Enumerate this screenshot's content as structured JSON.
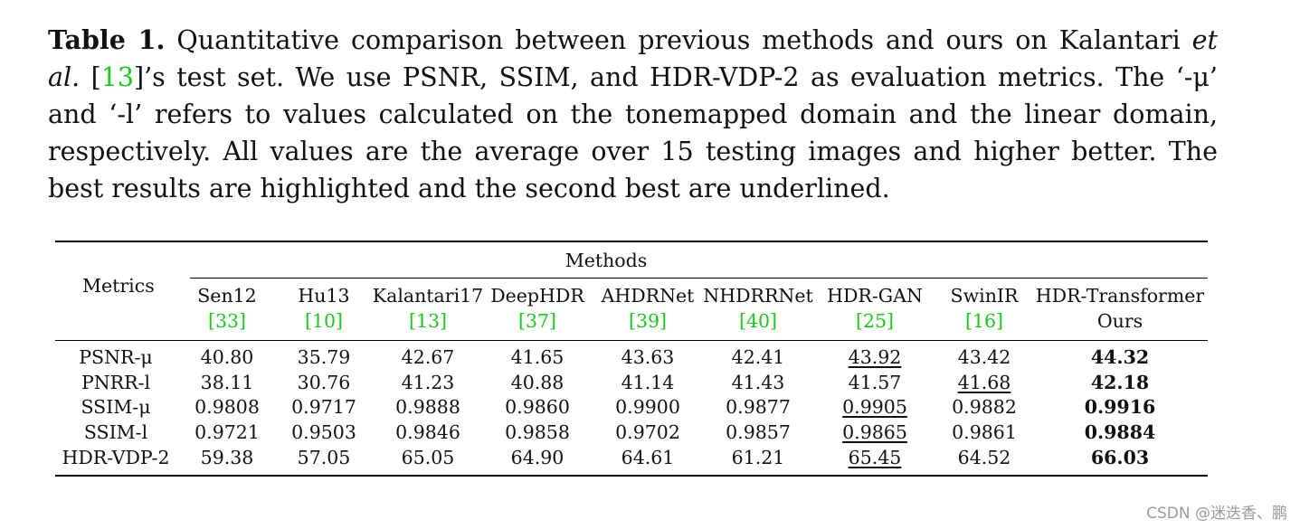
{
  "caption": {
    "label": "Table 1.",
    "text_a": " Quantitative comparison between previous methods and ours on Kalantari ",
    "et_al": "et al.",
    "cite_open": " [",
    "cite_num": "13",
    "text_b": "]’s test set. We use PSNR, SSIM, and HDR-VDP-2 as evaluation metrics. The ‘-μ’ and ‘-l’ refers to values calculated on the tonemapped domain and the linear domain, respectively. All values are the average over 15 testing images and higher better. The best results are highlighted and the second best are underlined."
  },
  "table": {
    "metrics_header": "Metrics",
    "methods_header": "Methods",
    "methods": [
      {
        "name": "Sen12",
        "cite": "[33]"
      },
      {
        "name": "Hu13",
        "cite": "[10]"
      },
      {
        "name": "Kalantari17",
        "cite": "[13]"
      },
      {
        "name": "DeepHDR",
        "cite": "[37]"
      },
      {
        "name": "AHDRNet",
        "cite": "[39]"
      },
      {
        "name": "NHDRRNet",
        "cite": "[40]"
      },
      {
        "name": "HDR-GAN",
        "cite": "[25]"
      },
      {
        "name": "SwinIR",
        "cite": "[16]"
      },
      {
        "name": "HDR-Transformer",
        "cite": "Ours"
      }
    ],
    "rows": [
      {
        "metric": "PSNR-μ",
        "values": [
          "40.80",
          "35.79",
          "42.67",
          "41.65",
          "43.63",
          "42.41",
          "43.92",
          "43.42",
          "44.32"
        ]
      },
      {
        "metric": "PNRR-l",
        "values": [
          "38.11",
          "30.76",
          "41.23",
          "40.88",
          "41.14",
          "41.43",
          "41.57",
          "41.68",
          "42.18"
        ]
      },
      {
        "metric": "SSIM-μ",
        "values": [
          "0.9808",
          "0.9717",
          "0.9888",
          "0.9860",
          "0.9900",
          "0.9877",
          "0.9905",
          "0.9882",
          "0.9916"
        ]
      },
      {
        "metric": "SSIM-l",
        "values": [
          "0.9721",
          "0.9503",
          "0.9846",
          "0.9858",
          "0.9702",
          "0.9857",
          "0.9865",
          "0.9861",
          "0.9884"
        ]
      },
      {
        "metric": "HDR-VDP-2",
        "values": [
          "59.38",
          "57.05",
          "65.05",
          "64.90",
          "64.61",
          "61.21",
          "65.45",
          "64.52",
          "66.03"
        ]
      }
    ]
  },
  "watermark": "CSDN @迷迭香、鹏"
}
